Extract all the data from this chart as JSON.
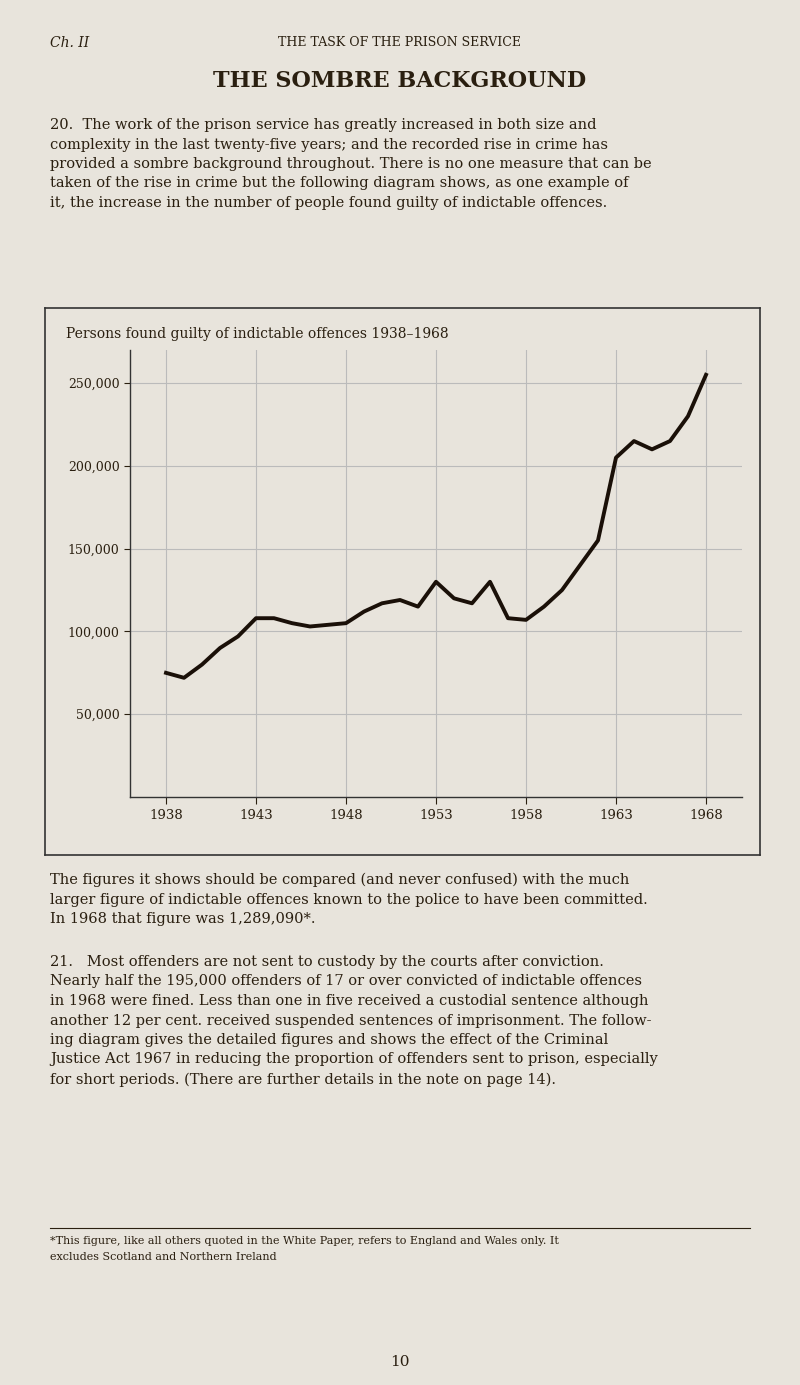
{
  "page_bg": "#e8e4dc",
  "header_left": "Ch. II",
  "header_center": "THE TASK OF THE PRISON SERVICE",
  "title": "THE SOMBRE BACKGROUND",
  "para20": "20.  The work of the prison service has greatly increased in both size and\ncomplexity in the last twenty-five years; and the recorded rise in crime has\nprovided a sombre background throughout. There is no one measure that can be\ntaken of the rise in crime but the following diagram shows, as one example of\nit, the increase in the number of people found guilty of indictable offences.",
  "chart_title": "Persons found guilty of indictable offences 1938–1968",
  "years": [
    1938,
    1939,
    1940,
    1941,
    1942,
    1943,
    1944,
    1945,
    1946,
    1947,
    1948,
    1949,
    1950,
    1951,
    1952,
    1953,
    1954,
    1955,
    1956,
    1957,
    1958,
    1959,
    1960,
    1961,
    1962,
    1963,
    1964,
    1965,
    1966,
    1967,
    1968
  ],
  "values": [
    75000,
    72000,
    80000,
    90000,
    97000,
    108000,
    108000,
    105000,
    103000,
    104000,
    105000,
    112000,
    117000,
    119000,
    115000,
    130000,
    120000,
    117000,
    130000,
    108000,
    107000,
    115000,
    125000,
    140000,
    155000,
    205000,
    215000,
    210000,
    215000,
    230000,
    255000
  ],
  "yticks": [
    50000,
    100000,
    150000,
    200000,
    250000
  ],
  "ytick_labels": [
    "50,000",
    "100,000",
    "150,000",
    "200,000",
    "250,000"
  ],
  "xticks": [
    1938,
    1943,
    1948,
    1953,
    1958,
    1963,
    1968
  ],
  "ylim": [
    0,
    270000
  ],
  "xlim": [
    1936,
    1970
  ],
  "line_color": "#1a1008",
  "line_width": 2.8,
  "grid_color": "#bbbbbb",
  "chart_bg": "#e8e4dc",
  "chart_border": "#333333",
  "para_figures": "The figures it shows should be compared (and never confused) with the much\nlarger figure of indictable offences known to the police to have been committed.\nIn 1968 that figure was 1,289,090*.",
  "para21": "21.   Most offenders are not sent to custody by the courts after conviction.\nNearly half the 195,000 offenders of 17 or over convicted of indictable offences\nin 1968 were fined. Less than one in five received a custodial sentence although\nanother 12 per cent. received suspended sentences of imprisonment. The follow-\ning diagram gives the detailed figures and shows the effect of the Criminal\nJustice Act 1967 in reducing the proportion of offenders sent to prison, especially\nfor short periods. (There are further details in the note on page 14).",
  "footnote_line1": "*This figure, like all others quoted in the White Paper, refers to England and Wales only. It",
  "footnote_line2": "excludes Scotland and Northern Ireland",
  "page_number": "10",
  "text_color": "#2a1f10",
  "footnote_color": "#2a1f10"
}
